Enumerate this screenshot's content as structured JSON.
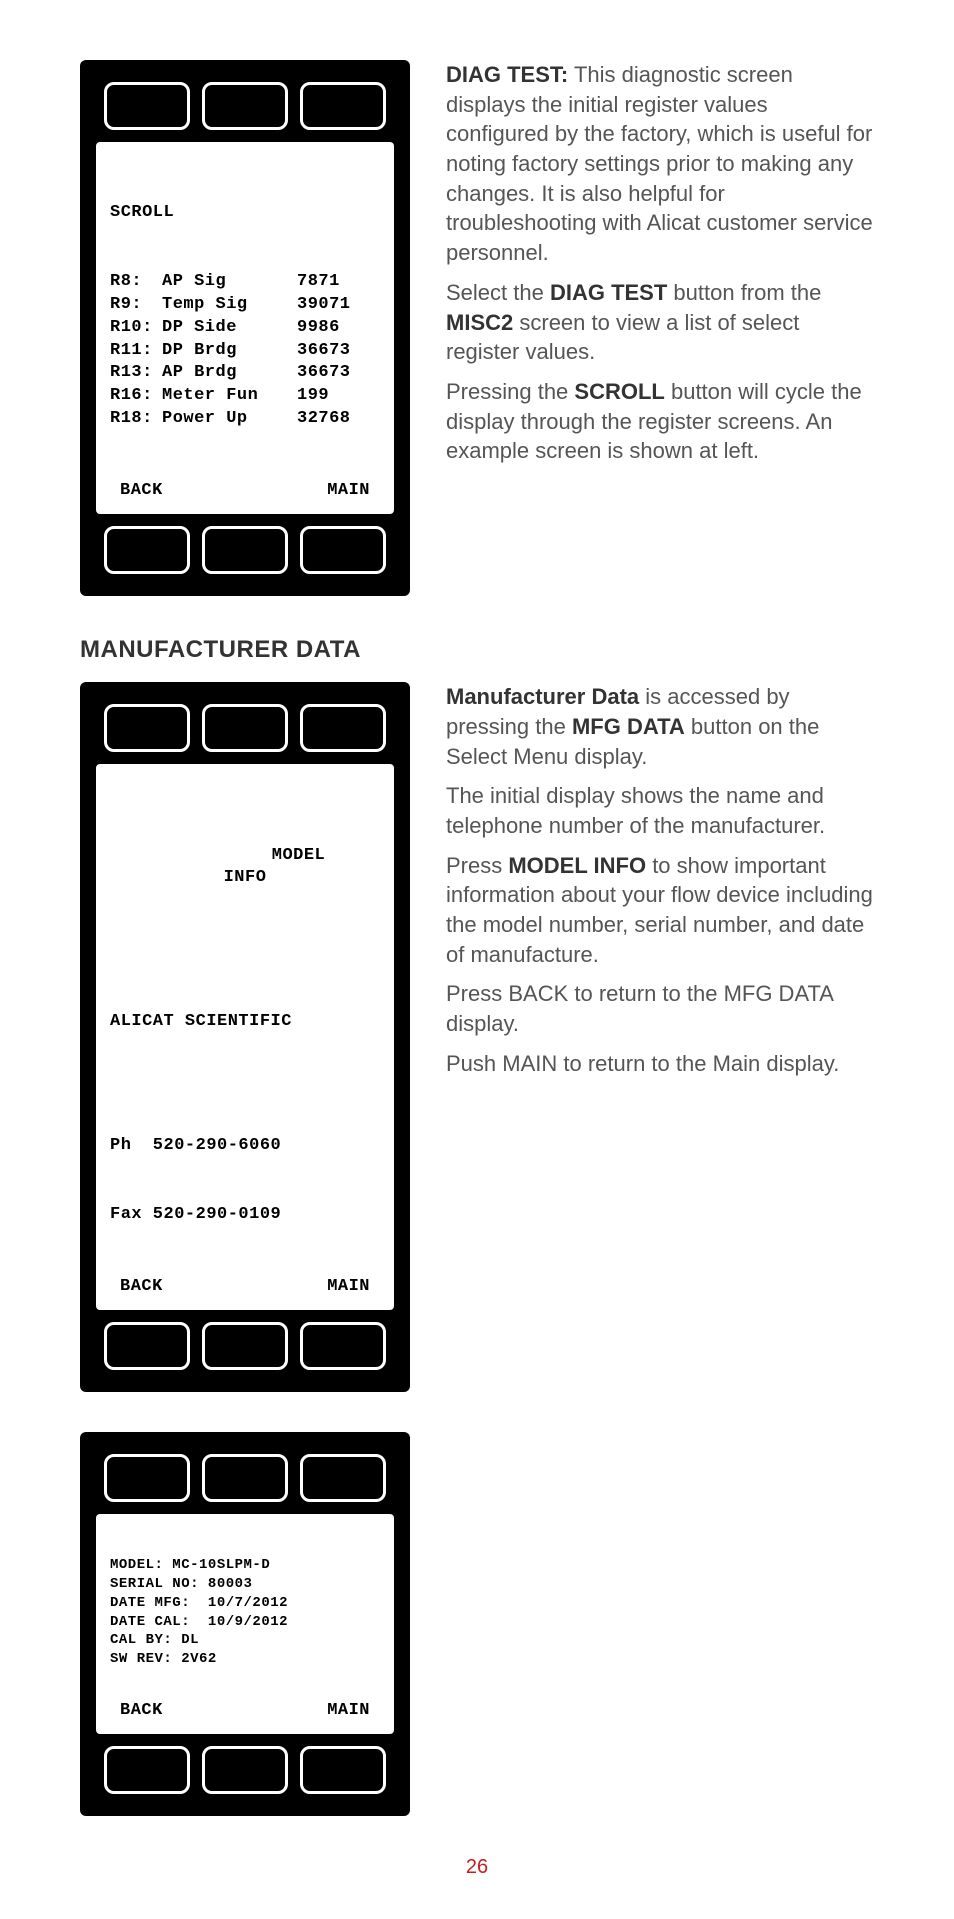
{
  "diag": {
    "scroll_label": "SCROLL",
    "rows": [
      {
        "reg": "R8:",
        "name": "AP Sig",
        "val": "7871"
      },
      {
        "reg": "R9:",
        "name": "Temp Sig",
        "val": "39071"
      },
      {
        "reg": "R10:",
        "name": "DP Side",
        "val": "9986"
      },
      {
        "reg": "R11:",
        "name": "DP Brdg",
        "val": "36673"
      },
      {
        "reg": "R13:",
        "name": "AP Brdg",
        "val": "36673"
      },
      {
        "reg": "R16:",
        "name": "Meter Fun",
        "val": "199"
      },
      {
        "reg": "R18:",
        "name": "Power Up",
        "val": "32768"
      }
    ],
    "back": "BACK",
    "main": "MAIN",
    "text": {
      "p1_lead": "DIAG TEST:",
      "p1_rest": " This diagnostic screen displays the initial register values configured by the factory, which is useful for noting factory settings prior to making any changes. It is also helpful for troubleshooting with Alicat customer service personnel.",
      "p2_pre": "Select the ",
      "p2_b1": "DIAG TEST",
      "p2_mid": " button from the ",
      "p2_b2": "MISC2",
      "p2_post": " screen to view a list of select register values.",
      "p3_pre": "Pressing the ",
      "p3_b": "SCROLL",
      "p3_post": " button will cycle the display through the register screens. An example screen is shown at left."
    }
  },
  "section_heading": "MANUFACTURER DATA",
  "mfg1": {
    "model_line1": "MODEL",
    "model_line2": "INFO",
    "company": "ALICAT SCIENTIFIC",
    "phone": "Ph  520-290-6060",
    "fax": "Fax 520-290-0109",
    "back": "BACK",
    "main": "MAIN",
    "text": {
      "p1_b": "Manufacturer Data",
      "p1_rest": " is accessed by pressing the ",
      "p1_b2": "MFG DATA",
      "p1_rest2": " button on the Select Menu display.",
      "p2": "The initial display shows the name and telephone number of the manufacturer.",
      "p3_pre": "Press ",
      "p3_b": "MODEL INFO",
      "p3_post": " to show important information about your flow device including the model number, serial number, and date of manufacture.",
      "p4": "Press BACK to return to the MFG DATA display.",
      "p5": "Push MAIN to return to the Main display."
    }
  },
  "mfg2": {
    "lines": [
      "MODEL: MC-10SLPM-D",
      "SERIAL NO: 80003",
      "DATE MFG:  10/7/2012",
      "DATE CAL:  10/9/2012",
      "CAL BY: DL",
      "SW REV: 2V62"
    ],
    "back": "BACK",
    "main": "MAIN"
  },
  "page_number": "26"
}
